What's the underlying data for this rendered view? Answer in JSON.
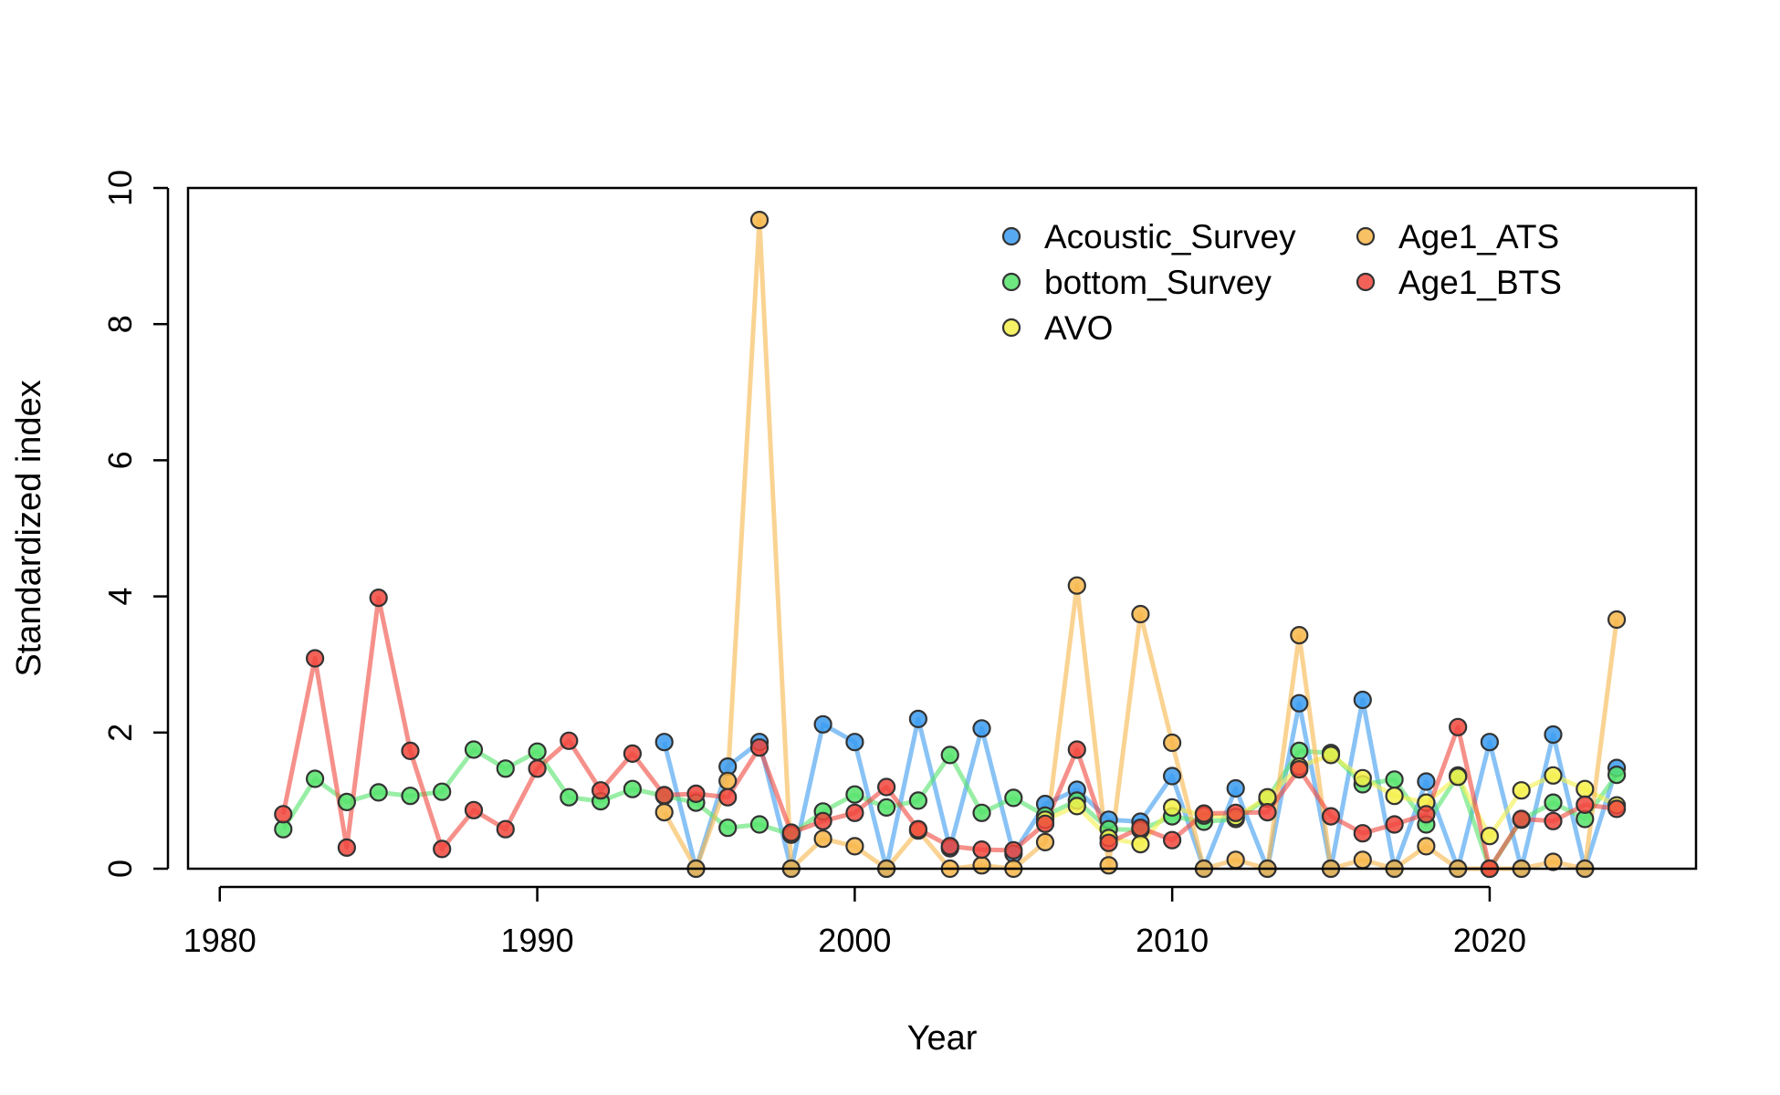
{
  "chart_data": {
    "type": "line",
    "xlabel": "Year",
    "ylabel": "Standardized index",
    "xlim": [
      1979,
      2026.5
    ],
    "ylim": [
      0,
      10
    ],
    "xticks": [
      1980,
      1990,
      2000,
      2010,
      2020
    ],
    "yticks": [
      0,
      2,
      4,
      6,
      8,
      10
    ],
    "grid": false,
    "legend_position": "top-right",
    "series": [
      {
        "name": "Acoustic_Survey",
        "color": "#3a9bf0",
        "points": [
          [
            1994,
            1.86
          ],
          [
            1995,
            0.0
          ],
          [
            1996,
            1.5
          ],
          [
            1997,
            1.86
          ],
          [
            1998,
            0.0
          ],
          [
            1999,
            2.12
          ],
          [
            2000,
            1.86
          ],
          [
            2001,
            0.0
          ],
          [
            2002,
            2.2
          ],
          [
            2003,
            0.3
          ],
          [
            2004,
            2.06
          ],
          [
            2005,
            0.22
          ],
          [
            2006,
            0.95
          ],
          [
            2007,
            1.16
          ],
          [
            2008,
            0.72
          ],
          [
            2009,
            0.69
          ],
          [
            2010,
            1.36
          ],
          [
            2011,
            0.0
          ],
          [
            2012,
            1.18
          ],
          [
            2013,
            0.0
          ],
          [
            2014,
            2.43
          ],
          [
            2015,
            0.0
          ],
          [
            2016,
            2.48
          ],
          [
            2017,
            0.0
          ],
          [
            2018,
            1.28
          ],
          [
            2019,
            0.0
          ],
          [
            2020,
            1.86
          ],
          [
            2021,
            0.0
          ],
          [
            2022,
            1.97
          ],
          [
            2023,
            0.0
          ],
          [
            2024,
            1.48
          ]
        ]
      },
      {
        "name": "bottom_Survey",
        "color": "#55e36b",
        "points": [
          [
            1982,
            0.58
          ],
          [
            1983,
            1.32
          ],
          [
            1984,
            0.98
          ],
          [
            1985,
            1.12
          ],
          [
            1986,
            1.07
          ],
          [
            1987,
            1.13
          ],
          [
            1988,
            1.75
          ],
          [
            1989,
            1.47
          ],
          [
            1990,
            1.72
          ],
          [
            1991,
            1.05
          ],
          [
            1992,
            0.99
          ],
          [
            1993,
            1.17
          ],
          [
            1994,
            1.07
          ],
          [
            1995,
            0.97
          ],
          [
            1996,
            0.6
          ],
          [
            1997,
            0.65
          ],
          [
            1998,
            0.5
          ],
          [
            1999,
            0.84
          ],
          [
            2000,
            1.09
          ],
          [
            2001,
            0.9
          ],
          [
            2002,
            1.0
          ],
          [
            2003,
            1.67
          ],
          [
            2004,
            0.82
          ],
          [
            2005,
            1.04
          ],
          [
            2006,
            0.78
          ],
          [
            2007,
            1.0
          ],
          [
            2008,
            0.58
          ],
          [
            2009,
            0.57
          ],
          [
            2010,
            0.77
          ],
          [
            2011,
            0.69
          ],
          [
            2012,
            0.73
          ],
          [
            2013,
            1.03
          ],
          [
            2014,
            1.73
          ],
          [
            2015,
            1.7
          ],
          [
            2016,
            1.24
          ],
          [
            2017,
            1.31
          ],
          [
            2018,
            0.65
          ],
          [
            2019,
            1.37
          ],
          [
            2020,
            0.0
          ],
          [
            2021,
            0.72
          ],
          [
            2022,
            0.97
          ],
          [
            2023,
            0.73
          ],
          [
            2024,
            1.38
          ]
        ]
      },
      {
        "name": "AVO",
        "color": "#f4f04a",
        "points": [
          [
            2006,
            0.72
          ],
          [
            2007,
            0.92
          ],
          [
            2008,
            0.45
          ],
          [
            2009,
            0.36
          ],
          [
            2010,
            0.9
          ],
          [
            2011,
            0.78
          ],
          [
            2012,
            0.76
          ],
          [
            2013,
            1.05
          ],
          [
            2014,
            1.5
          ],
          [
            2015,
            1.67
          ],
          [
            2016,
            1.33
          ],
          [
            2017,
            1.07
          ],
          [
            2018,
            0.97
          ],
          [
            2019,
            1.35
          ],
          [
            2020,
            0.48
          ],
          [
            2021,
            1.15
          ],
          [
            2022,
            1.37
          ],
          [
            2023,
            1.17
          ],
          [
            2024,
            0.93
          ]
        ]
      },
      {
        "name": "Age1_ATS",
        "color": "#f7b649",
        "points": [
          [
            1994,
            0.83
          ],
          [
            1995,
            0.0
          ],
          [
            1996,
            1.29
          ],
          [
            1997,
            9.53
          ],
          [
            1998,
            0.0
          ],
          [
            1999,
            0.44
          ],
          [
            2000,
            0.33
          ],
          [
            2001,
            0.0
          ],
          [
            2002,
            0.56
          ],
          [
            2003,
            0.0
          ],
          [
            2004,
            0.05
          ],
          [
            2005,
            0.0
          ],
          [
            2006,
            0.39
          ],
          [
            2007,
            4.16
          ],
          [
            2008,
            0.05
          ],
          [
            2009,
            3.74
          ],
          [
            2010,
            1.85
          ],
          [
            2011,
            0.0
          ],
          [
            2012,
            0.13
          ],
          [
            2013,
            0.0
          ],
          [
            2014,
            3.43
          ],
          [
            2015,
            0.0
          ],
          [
            2016,
            0.13
          ],
          [
            2017,
            0.0
          ],
          [
            2018,
            0.33
          ],
          [
            2019,
            0.0
          ],
          [
            2020,
            0.0
          ],
          [
            2021,
            0.0
          ],
          [
            2022,
            0.1
          ],
          [
            2023,
            0.0
          ],
          [
            2024,
            3.66
          ]
        ]
      },
      {
        "name": "Age1_BTS",
        "color": "#f0463c",
        "points": [
          [
            1982,
            0.8
          ],
          [
            1983,
            3.09
          ],
          [
            1984,
            0.31
          ],
          [
            1985,
            3.98
          ],
          [
            1986,
            1.73
          ],
          [
            1987,
            0.29
          ],
          [
            1988,
            0.86
          ],
          [
            1989,
            0.58
          ],
          [
            1990,
            1.47
          ],
          [
            1991,
            1.88
          ],
          [
            1992,
            1.15
          ],
          [
            1993,
            1.69
          ],
          [
            1994,
            1.08
          ],
          [
            1995,
            1.1
          ],
          [
            1996,
            1.05
          ],
          [
            1997,
            1.78
          ],
          [
            1998,
            0.53
          ],
          [
            1999,
            0.7
          ],
          [
            2000,
            0.82
          ],
          [
            2001,
            1.2
          ],
          [
            2002,
            0.58
          ],
          [
            2003,
            0.33
          ],
          [
            2004,
            0.28
          ],
          [
            2005,
            0.27
          ],
          [
            2006,
            0.66
          ],
          [
            2007,
            1.75
          ],
          [
            2008,
            0.38
          ],
          [
            2009,
            0.6
          ],
          [
            2010,
            0.42
          ],
          [
            2011,
            0.81
          ],
          [
            2012,
            0.82
          ],
          [
            2013,
            0.83
          ],
          [
            2014,
            1.46
          ],
          [
            2015,
            0.77
          ],
          [
            2016,
            0.52
          ],
          [
            2017,
            0.65
          ],
          [
            2018,
            0.8
          ],
          [
            2019,
            2.08
          ],
          [
            2020,
            0.0
          ],
          [
            2021,
            0.73
          ],
          [
            2022,
            0.7
          ],
          [
            2023,
            0.94
          ],
          [
            2024,
            0.88
          ]
        ]
      }
    ]
  }
}
